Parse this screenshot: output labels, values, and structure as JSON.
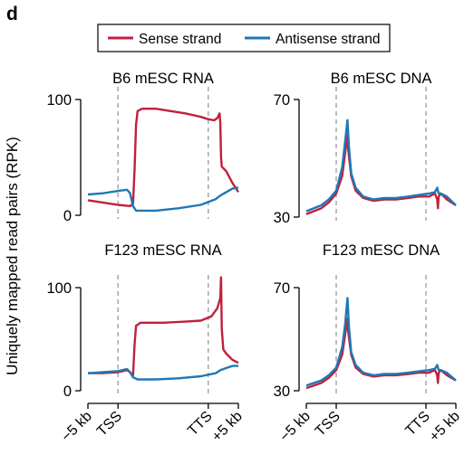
{
  "panel_label": "d",
  "ylabel": "Uniquely mapped read pairs (RPK)",
  "x_tick_labels": [
    "−5 kb",
    "TSS",
    "TTS",
    "+5 kb"
  ],
  "colors": {
    "sense": "#c0203c",
    "antisense": "#1f78b4",
    "guide": "#999999"
  },
  "legend": [
    {
      "label": "Sense strand",
      "color": "#c0203c"
    },
    {
      "label": "Antisense strand",
      "color": "#1f78b4"
    }
  ],
  "chart_data": [
    {
      "type": "line",
      "title": "B6 mESC RNA",
      "x_positions": [
        "−5 kb",
        "TSS",
        "TTS",
        "+5 kb"
      ],
      "ylim": [
        0,
        100
      ],
      "yticks": [
        0,
        100
      ],
      "series": [
        {
          "name": "Sense strand",
          "key": "sense",
          "points": [
            [
              0,
              13
            ],
            [
              0.1,
              11
            ],
            [
              0.2,
              9
            ],
            [
              0.28,
              8
            ],
            [
              0.3,
              10
            ],
            [
              0.31,
              40
            ],
            [
              0.32,
              78
            ],
            [
              0.33,
              90
            ],
            [
              0.36,
              92
            ],
            [
              0.45,
              92
            ],
            [
              0.55,
              90
            ],
            [
              0.65,
              88
            ],
            [
              0.75,
              85
            ],
            [
              0.8,
              83
            ],
            [
              0.84,
              82
            ],
            [
              0.86,
              84
            ],
            [
              0.875,
              88
            ],
            [
              0.88,
              80
            ],
            [
              0.885,
              50
            ],
            [
              0.89,
              42
            ],
            [
              0.92,
              38
            ],
            [
              0.96,
              28
            ],
            [
              1,
              20
            ]
          ]
        },
        {
          "name": "Antisense strand",
          "key": "antisense",
          "points": [
            [
              0,
              18
            ],
            [
              0.1,
              19
            ],
            [
              0.2,
              21
            ],
            [
              0.26,
              22
            ],
            [
              0.28,
              19
            ],
            [
              0.3,
              8
            ],
            [
              0.32,
              4
            ],
            [
              0.45,
              4
            ],
            [
              0.6,
              6
            ],
            [
              0.75,
              9
            ],
            [
              0.85,
              14
            ],
            [
              0.88,
              17
            ],
            [
              0.92,
              20
            ],
            [
              0.96,
              23
            ],
            [
              1,
              24
            ]
          ]
        }
      ]
    },
    {
      "type": "line",
      "title": "B6 mESC DNA",
      "x_positions": [
        "−5 kb",
        "TSS",
        "TTS",
        "+5 kb"
      ],
      "ylim": [
        30,
        70
      ],
      "yticks": [
        30,
        70
      ],
      "series": [
        {
          "name": "Sense strand",
          "key": "sense",
          "points": [
            [
              0,
              31
            ],
            [
              0.05,
              32
            ],
            [
              0.1,
              33
            ],
            [
              0.15,
              35
            ],
            [
              0.2,
              38
            ],
            [
              0.24,
              44
            ],
            [
              0.26,
              52
            ],
            [
              0.275,
              58
            ],
            [
              0.28,
              53
            ],
            [
              0.3,
              44
            ],
            [
              0.33,
              39
            ],
            [
              0.38,
              36.5
            ],
            [
              0.45,
              35.5
            ],
            [
              0.52,
              36
            ],
            [
              0.6,
              36
            ],
            [
              0.68,
              36.5
            ],
            [
              0.75,
              37
            ],
            [
              0.82,
              37
            ],
            [
              0.86,
              38
            ],
            [
              0.875,
              36
            ],
            [
              0.88,
              33
            ],
            [
              0.885,
              37
            ],
            [
              0.9,
              38
            ],
            [
              0.94,
              36
            ],
            [
              0.97,
              35
            ],
            [
              1,
              34
            ]
          ]
        },
        {
          "name": "Antisense strand",
          "key": "antisense",
          "points": [
            [
              0,
              32
            ],
            [
              0.05,
              33
            ],
            [
              0.1,
              34
            ],
            [
              0.15,
              36
            ],
            [
              0.2,
              39
            ],
            [
              0.24,
              47
            ],
            [
              0.26,
              56
            ],
            [
              0.275,
              63
            ],
            [
              0.285,
              54
            ],
            [
              0.3,
              45
            ],
            [
              0.33,
              40
            ],
            [
              0.38,
              37
            ],
            [
              0.45,
              36
            ],
            [
              0.52,
              36.5
            ],
            [
              0.6,
              36.5
            ],
            [
              0.68,
              37
            ],
            [
              0.75,
              37.5
            ],
            [
              0.82,
              38
            ],
            [
              0.86,
              38.5
            ],
            [
              0.875,
              40
            ],
            [
              0.885,
              38
            ],
            [
              0.9,
              38
            ],
            [
              0.94,
              37
            ],
            [
              0.97,
              35.5
            ],
            [
              1,
              34
            ]
          ]
        }
      ]
    },
    {
      "type": "line",
      "title": "F123 mESC RNA",
      "x_positions": [
        "−5 kb",
        "TSS",
        "TTS",
        "+5 kb"
      ],
      "ylim": [
        0,
        100
      ],
      "yticks": [
        0,
        100
      ],
      "series": [
        {
          "name": "Sense strand",
          "key": "sense",
          "points": [
            [
              0,
              17
            ],
            [
              0.1,
              17
            ],
            [
              0.2,
              18
            ],
            [
              0.26,
              20
            ],
            [
              0.28,
              18
            ],
            [
              0.3,
              15
            ],
            [
              0.31,
              45
            ],
            [
              0.32,
              63
            ],
            [
              0.35,
              66
            ],
            [
              0.5,
              66
            ],
            [
              0.65,
              67
            ],
            [
              0.75,
              68
            ],
            [
              0.82,
              72
            ],
            [
              0.86,
              80
            ],
            [
              0.88,
              90
            ],
            [
              0.885,
              110
            ],
            [
              0.89,
              60
            ],
            [
              0.9,
              40
            ],
            [
              0.92,
              36
            ],
            [
              0.96,
              30
            ],
            [
              1,
              27
            ]
          ]
        },
        {
          "name": "Antisense strand",
          "key": "antisense",
          "points": [
            [
              0,
              17
            ],
            [
              0.1,
              18
            ],
            [
              0.2,
              19
            ],
            [
              0.26,
              21
            ],
            [
              0.28,
              18
            ],
            [
              0.3,
              13
            ],
            [
              0.33,
              11
            ],
            [
              0.45,
              11
            ],
            [
              0.6,
              12
            ],
            [
              0.75,
              14
            ],
            [
              0.85,
              17
            ],
            [
              0.88,
              20
            ],
            [
              0.92,
              22
            ],
            [
              0.96,
              24
            ],
            [
              1,
              24
            ]
          ]
        }
      ]
    },
    {
      "type": "line",
      "title": "F123 mESC DNA",
      "x_positions": [
        "−5 kb",
        "TSS",
        "TTS",
        "+5 kb"
      ],
      "ylim": [
        30,
        70
      ],
      "yticks": [
        30,
        70
      ],
      "series": [
        {
          "name": "Sense strand",
          "key": "sense",
          "points": [
            [
              0,
              31
            ],
            [
              0.05,
              32
            ],
            [
              0.1,
              33
            ],
            [
              0.15,
              35
            ],
            [
              0.2,
              38
            ],
            [
              0.24,
              44
            ],
            [
              0.26,
              52
            ],
            [
              0.275,
              58
            ],
            [
              0.28,
              53
            ],
            [
              0.3,
              44
            ],
            [
              0.33,
              39
            ],
            [
              0.38,
              36.5
            ],
            [
              0.45,
              35.5
            ],
            [
              0.52,
              36
            ],
            [
              0.6,
              36
            ],
            [
              0.68,
              36.5
            ],
            [
              0.75,
              37
            ],
            [
              0.82,
              37
            ],
            [
              0.86,
              38
            ],
            [
              0.875,
              36
            ],
            [
              0.88,
              33
            ],
            [
              0.885,
              37
            ],
            [
              0.9,
              38
            ],
            [
              0.94,
              36
            ],
            [
              0.97,
              35
            ],
            [
              1,
              34
            ]
          ]
        },
        {
          "name": "Antisense strand",
          "key": "antisense",
          "points": [
            [
              0,
              32
            ],
            [
              0.05,
              33
            ],
            [
              0.1,
              34
            ],
            [
              0.15,
              36
            ],
            [
              0.2,
              39
            ],
            [
              0.24,
              47
            ],
            [
              0.26,
              56
            ],
            [
              0.275,
              66
            ],
            [
              0.285,
              55
            ],
            [
              0.3,
              45
            ],
            [
              0.33,
              40
            ],
            [
              0.38,
              37
            ],
            [
              0.45,
              36
            ],
            [
              0.52,
              36.5
            ],
            [
              0.6,
              36.5
            ],
            [
              0.68,
              37
            ],
            [
              0.75,
              37.5
            ],
            [
              0.82,
              38
            ],
            [
              0.86,
              38.5
            ],
            [
              0.875,
              40
            ],
            [
              0.885,
              38
            ],
            [
              0.9,
              38
            ],
            [
              0.94,
              37
            ],
            [
              0.97,
              35.5
            ],
            [
              1,
              34
            ]
          ]
        }
      ]
    }
  ]
}
